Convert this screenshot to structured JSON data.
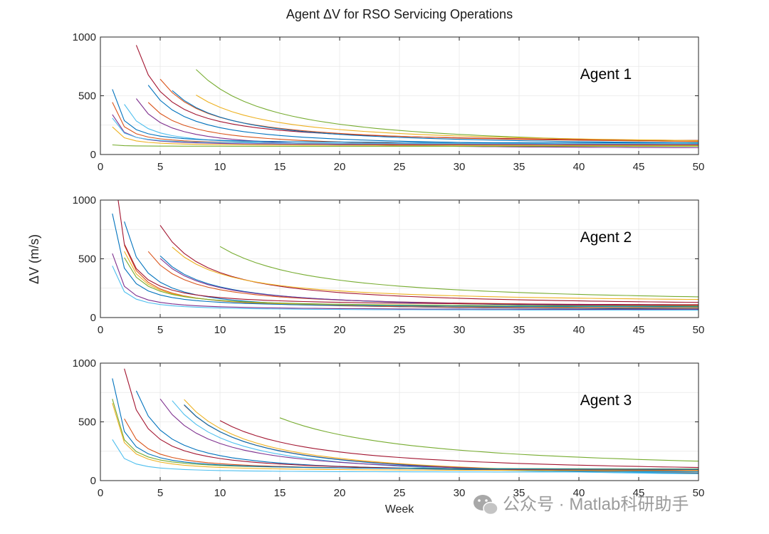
{
  "chart_data": {
    "type": "line",
    "title": "Agent ΔV for RSO Servicing Operations",
    "xlabel": "Week",
    "ylabel": "ΔV (m/s)",
    "xlim": [
      0,
      50
    ],
    "ylim": [
      0,
      1000
    ],
    "xticks": [
      "0",
      "5",
      "10",
      "15",
      "20",
      "25",
      "30",
      "35",
      "40",
      "45",
      "50"
    ],
    "yticks": [
      "0",
      "500",
      "1000"
    ],
    "grid": true,
    "panels": [
      {
        "label": "Agent 1",
        "series": [
          {
            "color": "#77ac30",
            "start": 8,
            "a": 9200,
            "c": 40,
            "note": "top green"
          },
          {
            "color": "#a2142f",
            "start": 3,
            "a": 3300,
            "c": 95
          },
          {
            "color": "#edb120",
            "start": 8,
            "a": 5800,
            "c": 75
          },
          {
            "color": "#d95319",
            "start": 5,
            "a": 4200,
            "c": 80
          },
          {
            "color": "#0072bd",
            "start": 6,
            "a": 4500,
            "c": 65
          },
          {
            "color": "#0072bd",
            "start": 4,
            "a": 3000,
            "c": 60
          },
          {
            "color": "#d95319",
            "start": 4,
            "a": 2200,
            "c": 55
          },
          {
            "color": "#7e2f8e",
            "start": 3,
            "a": 1700,
            "c": 45
          },
          {
            "color": "#4dbeee",
            "start": 2,
            "a": 850,
            "c": 70
          },
          {
            "color": "#0072bd",
            "start": 1,
            "a": 460,
            "c": 95
          },
          {
            "color": "#d95319",
            "start": 1,
            "a": 360,
            "c": 85
          },
          {
            "color": "#7e2f8e",
            "start": 1,
            "a": 260,
            "c": 80
          },
          {
            "color": "#4dbeee",
            "start": 1,
            "a": 220,
            "c": 90
          },
          {
            "color": "#edb120",
            "start": 1,
            "a": 160,
            "c": 75
          },
          {
            "color": "#77ac30",
            "start": 1,
            "a": 12,
            "c": 70
          }
        ]
      },
      {
        "label": "Agent 2",
        "series": [
          {
            "color": "#77ac30",
            "start": 10,
            "a": 8800,
            "c": 110
          },
          {
            "color": "#a2142f",
            "start": 5,
            "a": 5200,
            "c": 90
          },
          {
            "color": "#edb120",
            "start": 6,
            "a": 4500,
            "c": 120
          },
          {
            "color": "#d95319",
            "start": 4,
            "a": 2700,
            "c": 85
          },
          {
            "color": "#0072bd",
            "start": 5,
            "a": 3400,
            "c": 70
          },
          {
            "color": "#7e2f8e",
            "start": 5,
            "a": 3200,
            "c": 75
          },
          {
            "color": "#0072bd",
            "start": 2,
            "a": 1800,
            "c": 60
          },
          {
            "color": "#d95319",
            "start": 2,
            "a": 1300,
            "c": 70
          },
          {
            "color": "#edb120",
            "start": 2,
            "a": 1150,
            "c": 80
          },
          {
            "color": "#77ac30",
            "start": 2,
            "a": 1000,
            "c": 90
          },
          {
            "color": "#a2142f",
            "start": 1,
            "a": 1250,
            "c": 100
          },
          {
            "color": "#0072bd",
            "start": 1,
            "a": 800,
            "c": 85
          },
          {
            "color": "#7e2f8e",
            "start": 1,
            "a": 480,
            "c": 65
          },
          {
            "color": "#4dbeee",
            "start": 1,
            "a": 380,
            "c": 60
          }
        ]
      },
      {
        "label": "Agent 3",
        "series": [
          {
            "color": "#77ac30",
            "start": 15,
            "a": 14000,
            "c": 60
          },
          {
            "color": "#a2142f",
            "start": 10,
            "a": 8200,
            "c": 50
          },
          {
            "color": "#edb120",
            "start": 7,
            "a": 7800,
            "c": 5
          },
          {
            "color": "#d95319",
            "start": 7,
            "a": 7200,
            "c": 10
          },
          {
            "color": "#0072bd",
            "start": 7,
            "a": 7300,
            "c": 5
          },
          {
            "color": "#4dbeee",
            "start": 6,
            "a": 6300,
            "c": 10
          },
          {
            "color": "#7e2f8e",
            "start": 5,
            "a": 4900,
            "c": 40
          },
          {
            "color": "#0072bd",
            "start": 3,
            "a": 2800,
            "c": 55
          },
          {
            "color": "#a2142f",
            "start": 2,
            "a": 2100,
            "c": 70
          },
          {
            "color": "#d95319",
            "start": 2,
            "a": 1050,
            "c": 85
          },
          {
            "color": "#77ac30",
            "start": 1,
            "a": 600,
            "c": 95
          },
          {
            "color": "#0072bd",
            "start": 1,
            "a": 780,
            "c": 90
          },
          {
            "color": "#edb120",
            "start": 1,
            "a": 580,
            "c": 80
          },
          {
            "color": "#4dbeee",
            "start": 1,
            "a": 280,
            "c": 70
          }
        ]
      }
    ]
  },
  "watermark": {
    "text": "公众号 · Matlab科研助手",
    "icon": "wechat-icon"
  }
}
